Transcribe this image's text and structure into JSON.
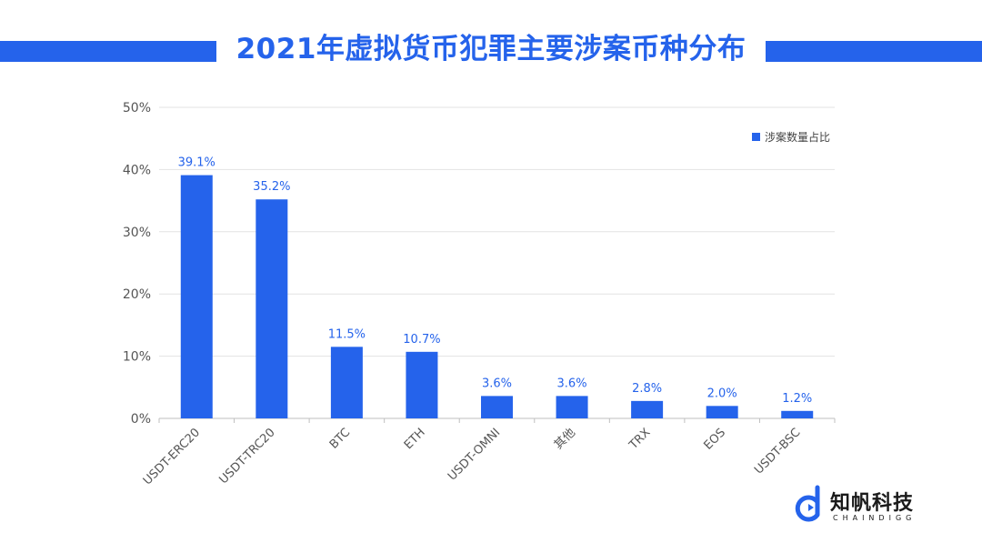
{
  "title": "2021年虚拟货币犯罪主要涉案币种分布",
  "colors": {
    "accent": "#2563eb",
    "grid": "#e3e3e3",
    "axis": "#bfbfbf"
  },
  "logo": {
    "name": "知帆科技",
    "subtitle": "CHAINDIGG",
    "icon": "chaindigg-logo-icon"
  },
  "chart_data": {
    "type": "bar",
    "categories": [
      "USDT-ERC20",
      "USDT-TRC20",
      "BTC",
      "ETH",
      "USDT-OMNI",
      "其他",
      "TRX",
      "EOS",
      "USDT-BSC"
    ],
    "series": [
      {
        "name": "涉案数量占比",
        "values": [
          39.1,
          35.2,
          11.5,
          10.7,
          3.6,
          3.6,
          2.8,
          2.0,
          1.2
        ]
      }
    ],
    "data_labels": [
      "39.1%",
      "35.2%",
      "11.5%",
      "10.7%",
      "3.6%",
      "3.6%",
      "2.8%",
      "2.0%",
      "1.2%"
    ],
    "yticks": [
      "0%",
      "10%",
      "20%",
      "30%",
      "40%",
      "50%"
    ],
    "ylim": [
      0,
      50
    ],
    "legend_position": "top-right",
    "grid": true,
    "xlabel": "",
    "ylabel": ""
  }
}
